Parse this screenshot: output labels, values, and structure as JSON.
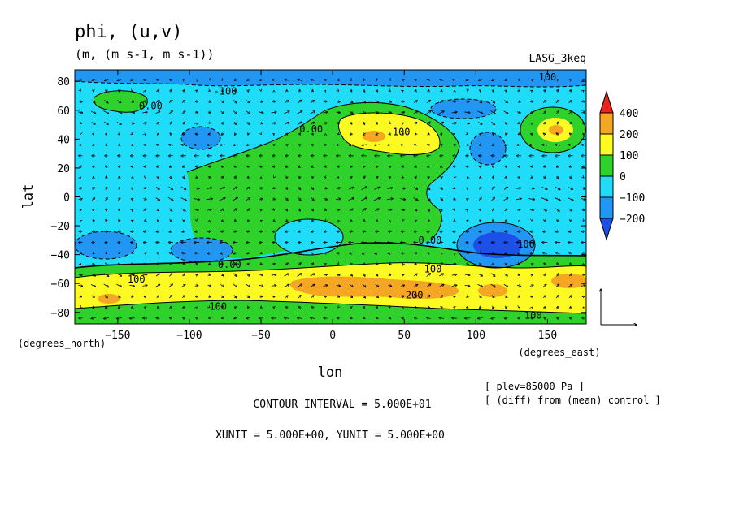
{
  "chart_data": {
    "type": "heatmap",
    "title": "phi, (u,v)",
    "subtitle": "(m, (m s-1, m s-1))",
    "experiment": "LASG_3keq",
    "x_axis": {
      "label": "lon",
      "unit_label": "(degrees_east)",
      "range": [
        -180,
        177
      ],
      "ticks": [
        -150,
        -100,
        -50,
        0,
        50,
        100,
        150
      ]
    },
    "y_axis": {
      "label": "lat",
      "unit_label": "(degrees_north)",
      "range": [
        -88,
        88
      ],
      "ticks": [
        80,
        60,
        40,
        20,
        0,
        -20,
        -40,
        -60,
        -80
      ]
    },
    "colorbar": {
      "levels": [
        "400",
        "200",
        "100",
        "0",
        "-100",
        "-200"
      ],
      "colors": [
        "#e8251b",
        "#f5a623",
        "#fdfa23",
        "#2fd22a",
        "#1fdcf9",
        "#2196f2",
        "#1c50e6"
      ]
    },
    "contour_labels": [
      {
        "text": "0.00",
        "lon": -127,
        "lat": 63
      },
      {
        "text": "-100",
        "lon": -75,
        "lat": 73
      },
      {
        "text": "0.00",
        "lon": -15,
        "lat": 47
      },
      {
        "text": "100",
        "lon": 48,
        "lat": 45
      },
      {
        "text": "100",
        "lon": 150,
        "lat": 83
      },
      {
        "text": "0.00",
        "lon": 68,
        "lat": -30
      },
      {
        "text": "100",
        "lon": 135,
        "lat": -33
      },
      {
        "text": "100",
        "lon": 70,
        "lat": -50
      },
      {
        "text": "0.00",
        "lon": -72,
        "lat": -47
      },
      {
        "text": "100",
        "lon": -137,
        "lat": -57
      },
      {
        "text": "-200",
        "lon": 55,
        "lat": -68
      },
      {
        "text": "100",
        "lon": -80,
        "lat": -76
      },
      {
        "text": "100",
        "lon": 140,
        "lat": -82
      }
    ],
    "vector_reference": {
      "xunit": 5.0,
      "yunit": 5.0
    },
    "grid": false
  },
  "footer": {
    "level": "[ plev=85000 Pa ]",
    "diff": "[ (diff) from (mean) control ]",
    "contour_interval": "CONTOUR INTERVAL = 5.000E+01",
    "units": "XUNIT = 5.000E+00, YUNIT = 5.000E+00"
  }
}
